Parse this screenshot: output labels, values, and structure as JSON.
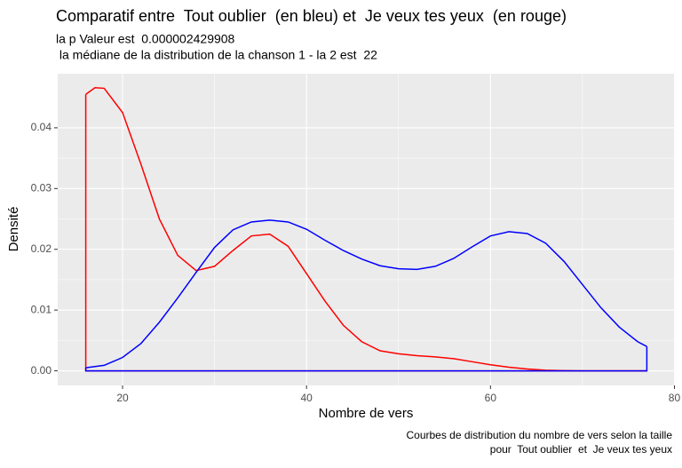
{
  "chart_data": {
    "type": "density",
    "title": "Comparatif entre  Tout oublier  (en bleu) et  Je veux tes yeux  (en rouge)",
    "subtitle": [
      "la p Valeur est  0.000002429908",
      " la médiane de la distribution de la chanson 1 - la 2 est  22"
    ],
    "caption": [
      "Courbes de distribution du nombre de vers selon la taille",
      "pour  Tout oublier  et  Je veux tes yeux"
    ],
    "x_label": "Nombre de vers",
    "y_label": "Densité",
    "x": [
      16,
      17,
      18,
      20,
      22,
      24,
      26,
      28,
      30,
      32,
      34,
      36,
      38,
      40,
      42,
      44,
      46,
      48,
      50,
      52,
      54,
      56,
      58,
      60,
      62,
      64,
      66,
      68,
      70,
      72,
      74,
      76,
      77
    ],
    "series": [
      {
        "color": "#ff0000",
        "values": [
          0.0455,
          0.0466,
          0.0465,
          0.0425,
          0.034,
          0.025,
          0.019,
          0.0165,
          0.0172,
          0.0198,
          0.0222,
          0.0225,
          0.0205,
          0.016,
          0.0115,
          0.0075,
          0.0048,
          0.0033,
          0.0028,
          0.0025,
          0.0023,
          0.002,
          0.0015,
          0.001,
          0.0006,
          0.0003,
          0.0001,
          3e-05,
          0,
          0,
          0,
          0,
          0
        ]
      },
      {
        "color": "#0000ff",
        "values": [
          0.0005,
          0.0007,
          0.0009,
          0.0022,
          0.0045,
          0.008,
          0.012,
          0.0162,
          0.0203,
          0.0232,
          0.0245,
          0.0248,
          0.0245,
          0.0233,
          0.0215,
          0.0198,
          0.0184,
          0.0173,
          0.0168,
          0.0167,
          0.0172,
          0.0185,
          0.0204,
          0.0222,
          0.0229,
          0.0226,
          0.021,
          0.018,
          0.0142,
          0.0104,
          0.0072,
          0.0048,
          0.004
        ]
      }
    ],
    "xlim": [
      12.95,
      80.05
    ],
    "ylim": [
      -0.0024,
      0.0489
    ],
    "xticks": [
      20,
      40,
      60,
      80
    ],
    "yticks": [
      {
        "value": 0,
        "label": "0.00"
      },
      {
        "value": 0.01,
        "label": "0.01"
      },
      {
        "value": 0.02,
        "label": "0.02"
      },
      {
        "value": 0.03,
        "label": "0.03"
      },
      {
        "value": 0.04,
        "label": "0.04"
      }
    ],
    "grid": true
  }
}
